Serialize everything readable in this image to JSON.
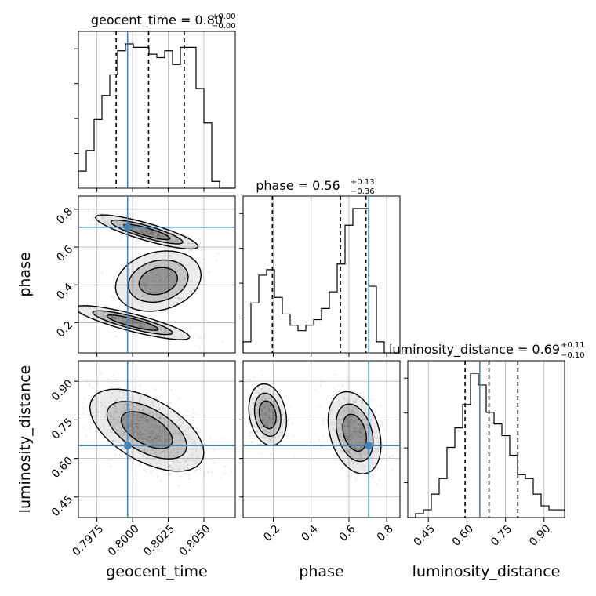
{
  "colors": {
    "truth": "#4682b4",
    "line": "#000000",
    "grid": "#b0b0b0",
    "scatter": "#888888"
  },
  "chart_data": {
    "type": "corner",
    "parameters": [
      {
        "name": "geocent_time",
        "range": [
          0.7962,
          0.8072
        ],
        "ticks": [
          0.7975,
          0.8,
          0.8025,
          0.805
        ],
        "tick_labels": [
          "0.7975",
          "0.8000",
          "0.8025",
          "0.8050"
        ],
        "truth": 0.79965
      },
      {
        "name": "phase",
        "range": [
          0.04,
          0.87
        ],
        "ticks": [
          0.2,
          0.4,
          0.6,
          0.8
        ],
        "tick_labels": [
          "0.2",
          "0.4",
          "0.6",
          "0.8"
        ],
        "truth": 0.705
      },
      {
        "name": "luminosity_distance",
        "range": [
          0.37,
          0.98
        ],
        "ticks": [
          0.45,
          0.6,
          0.75,
          0.9
        ],
        "tick_labels": [
          "0.45",
          "0.60",
          "0.75",
          "0.90"
        ],
        "truth": 0.65
      }
    ],
    "titles": {
      "geocent_time": {
        "label": "geocent_time = 0.80",
        "sup": "+0.00",
        "sub": "−0.00"
      },
      "phase": {
        "label": "phase = 0.56",
        "sup": "+0.13",
        "sub": "−0.36"
      },
      "luminosity_distance": {
        "label": "luminosity_distance = 0.69",
        "sup": "+0.11",
        "sub": "−0.10"
      }
    },
    "quantiles": {
      "geocent_time": [
        0.79885,
        0.80112,
        0.80362
      ],
      "phase": [
        0.195,
        0.555,
        0.69
      ],
      "luminosity_distance": [
        0.593,
        0.686,
        0.798
      ]
    },
    "histograms": {
      "geocent_time": {
        "edges_start": 0.7962,
        "bin_width": 0.00055,
        "counts": [
          5,
          11,
          20,
          27,
          33,
          40,
          42,
          41,
          41,
          39,
          38,
          40,
          36,
          41,
          41,
          29,
          19,
          2,
          0,
          0
        ]
      },
      "phase": {
        "edges_start": 0.04,
        "bin_width": 0.0415,
        "counts": [
          2,
          9,
          14,
          15,
          10,
          7,
          5,
          4,
          5,
          6,
          8,
          11,
          16,
          23,
          26,
          26,
          12,
          2,
          0,
          0
        ]
      },
      "luminosity_distance": {
        "edges_start": 0.37,
        "bin_width": 0.0305,
        "counts": [
          0,
          1,
          2,
          6,
          10,
          18,
          23,
          29,
          37,
          34,
          27,
          24,
          21,
          16,
          11,
          10,
          6,
          3,
          2,
          2
        ]
      }
    },
    "grid": true
  },
  "axes": {
    "x_labels": [
      "geocent_time",
      "phase",
      "luminosity_distance"
    ],
    "y_labels": [
      "phase",
      "luminosity_distance"
    ]
  }
}
